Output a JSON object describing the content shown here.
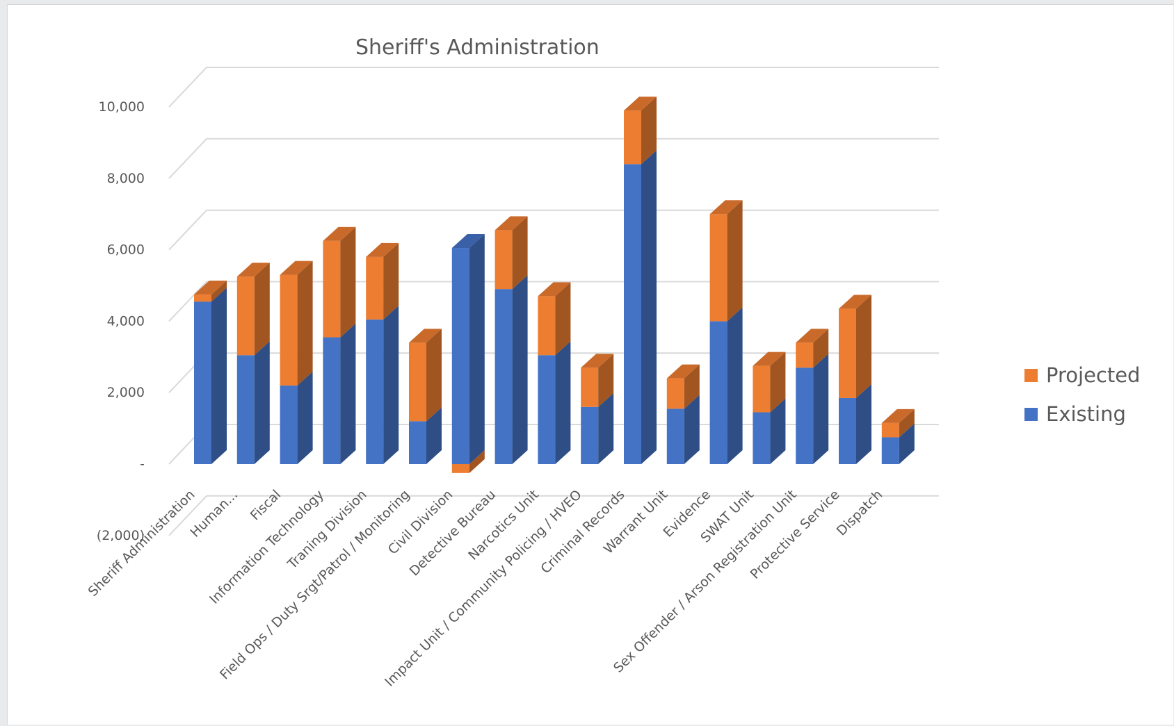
{
  "chart_data": {
    "type": "bar",
    "title": "Sheriff's Administration",
    "stacked": true,
    "three_d": true,
    "xlabel": "",
    "ylabel": "",
    "ylim": [
      -2000,
      10000
    ],
    "y_ticks": [
      {
        "value": 10000,
        "label": "10,000"
      },
      {
        "value": 8000,
        "label": "8,000"
      },
      {
        "value": 6000,
        "label": "6,000"
      },
      {
        "value": 4000,
        "label": "4,000"
      },
      {
        "value": 2000,
        "label": "2,000"
      },
      {
        "value": 0,
        "label": "-"
      },
      {
        "value": -2000,
        "label": "(2,000)"
      }
    ],
    "categories": [
      "Sheriff Administration",
      "Human...",
      "Fiscal",
      "Information Technology",
      "Traning Division",
      "Field Ops / Duty Srgt/Patrol / Monitoring",
      "Civil Division",
      "Detective Bureau",
      "Narcotics Unit",
      "Impact Unit / Community Policing / HVEO",
      "Criminal Records",
      "Warrant Unit",
      "Evidence",
      "SWAT Unit",
      "Sex Offender / Arson Registration Unit",
      "Protective Service",
      "Dispatch"
    ],
    "series": [
      {
        "name": "Existing",
        "color": "#4472C4",
        "values": [
          4550,
          3050,
          2200,
          3550,
          4050,
          1200,
          6050,
          4900,
          3050,
          1600,
          8400,
          1550,
          4000,
          1450,
          2700,
          1850,
          750
        ]
      },
      {
        "name": "Projected",
        "color": "#ED7D31",
        "values": [
          200,
          2200,
          3100,
          2700,
          1750,
          2200,
          -250,
          1650,
          1650,
          1100,
          1500,
          850,
          3000,
          1300,
          700,
          2500,
          400
        ]
      }
    ],
    "legend_order": [
      "Projected",
      "Existing"
    ],
    "legend_position": "right",
    "grid": true
  }
}
